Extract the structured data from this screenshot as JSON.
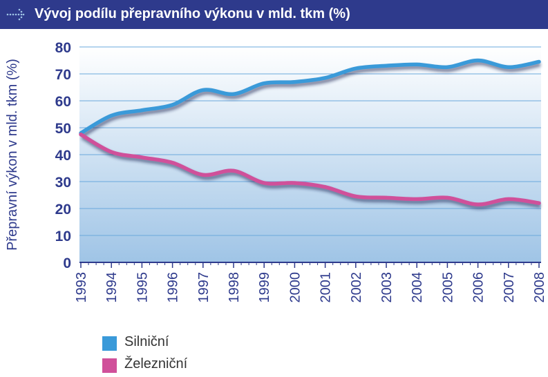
{
  "header": {
    "title": "Vývoj podílu přepravního výkonu v mld. tkm (%)",
    "icon": "dotted-arrow-right-icon"
  },
  "colors": {
    "header_bg": "#2e3a8c",
    "axis_text": "#2e3a8c",
    "silnicni": "#3a9ad9",
    "zeleznicni": "#d0509a",
    "plot_bg_top": "#ffffff",
    "plot_bg_bottom": "#9fc4e6"
  },
  "chart_data": {
    "type": "line",
    "title": "Vývoj podílu přepravního výkonu v mld. tkm (%)",
    "xlabel": "",
    "ylabel": "Přepravní výkon v mld. tkm (%)",
    "x": [
      "1993",
      "1994",
      "1995",
      "1996",
      "1997",
      "1998",
      "1999",
      "2000",
      "2001",
      "2002",
      "2003",
      "2004",
      "2005",
      "2006",
      "2007",
      "2008"
    ],
    "ylim": [
      0,
      80
    ],
    "yticks": [
      "0",
      "10",
      "20",
      "30",
      "40",
      "50",
      "60",
      "70",
      "80"
    ],
    "grid": true,
    "legend_position": "bottom-left",
    "series": [
      {
        "name": "Silniční",
        "color": "#3a9ad9",
        "values": [
          48,
          54.5,
          56.5,
          58.5,
          64,
          62.5,
          66.5,
          67,
          68.5,
          72,
          73,
          73.5,
          72.5,
          75,
          72.5,
          74.5
        ]
      },
      {
        "name": "Železniční",
        "color": "#d0509a",
        "values": [
          47.5,
          41,
          39,
          37,
          32.5,
          34,
          29.5,
          29.5,
          28,
          24.5,
          24,
          23.5,
          24,
          21.5,
          23.5,
          22
        ]
      }
    ]
  }
}
